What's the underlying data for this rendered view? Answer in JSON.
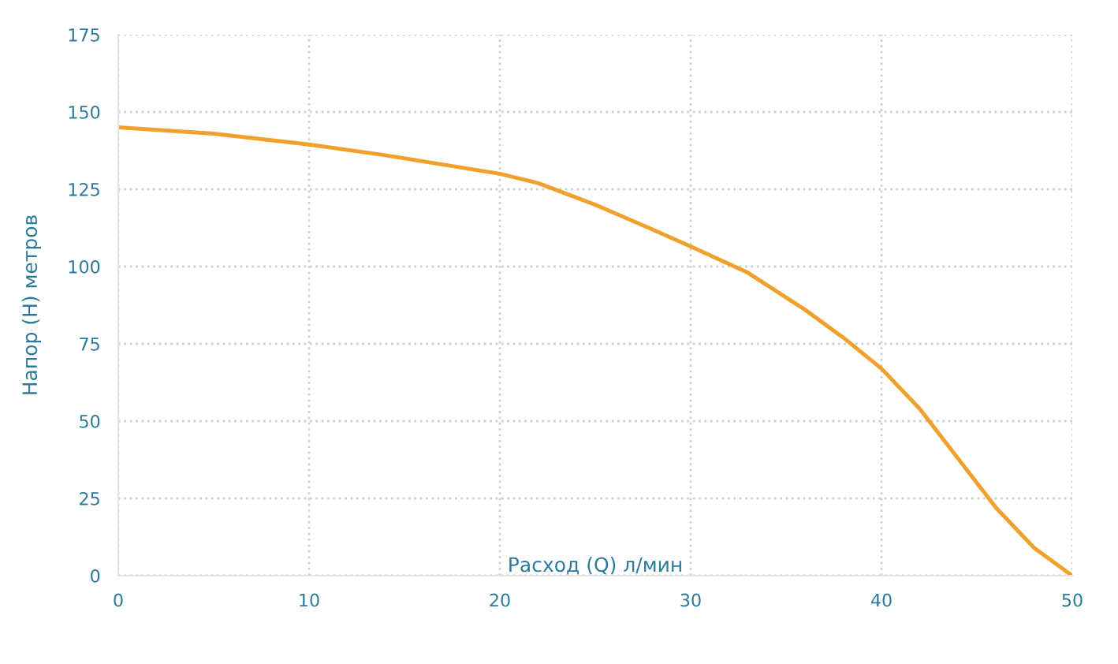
{
  "chart_data": {
    "type": "line",
    "xlabel": "Расход (Q) л/мин",
    "ylabel": "Напор (H) метров",
    "x": [
      0,
      5,
      10,
      14,
      17,
      20,
      22,
      25,
      28,
      30,
      33,
      36,
      38,
      40,
      42,
      44,
      46,
      48,
      50
    ],
    "series": [
      {
        "color": "#f0a02c",
        "values": [
          145,
          143,
          139.5,
          136,
          133,
          130,
          127,
          120,
          112,
          106.5,
          98,
          86,
          77,
          67,
          54,
          38,
          22,
          9,
          0
        ]
      }
    ],
    "xlim": [
      0,
      50
    ],
    "xticks": [
      0,
      10,
      20,
      30,
      40,
      50
    ],
    "ylim": [
      0,
      175
    ],
    "yticks": [
      0,
      25,
      50,
      75,
      100,
      125,
      150,
      175
    ],
    "grid": true,
    "marker": "none",
    "line_style": "solid",
    "legend": false
  }
}
